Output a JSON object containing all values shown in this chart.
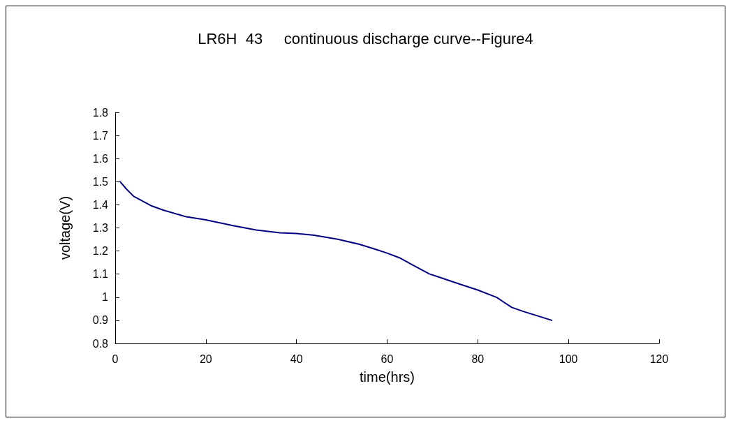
{
  "chart_data": {
    "type": "line",
    "title": "LR6H  43     continuous discharge curve--Figure4",
    "xlabel": "time(hrs)",
    "ylabel": "voltage(V)",
    "series": [
      {
        "color": "#000080",
        "x": [
          1.1,
          2.4,
          4.05,
          8.05,
          10.6,
          15.7,
          20,
          26,
          31.1,
          36.3,
          40,
          43.9,
          49.1,
          53.9,
          57,
          60,
          62.7,
          65.2,
          69.3,
          71.9,
          76,
          80,
          84.2,
          85.7,
          87.5,
          89.8,
          96.3
        ],
        "values": [
          1.5,
          1.47,
          1.437,
          1.395,
          1.377,
          1.348,
          1.335,
          1.31,
          1.291,
          1.279,
          1.276,
          1.268,
          1.251,
          1.229,
          1.21,
          1.191,
          1.171,
          1.144,
          1.101,
          1.084,
          1.057,
          1.031,
          0.999,
          0.979,
          0.956,
          0.94,
          0.9
        ]
      }
    ],
    "xlim": [
      0,
      120
    ],
    "xticks": [
      0,
      20,
      40,
      60,
      80,
      100,
      120
    ],
    "ylim": [
      0.8,
      1.8
    ],
    "yticks": [
      0.8,
      0.9,
      1,
      1.1,
      1.2,
      1.3,
      1.4,
      1.5,
      1.6,
      1.7,
      1.8
    ],
    "grid": false,
    "marker": "none",
    "line_style": "solid"
  }
}
